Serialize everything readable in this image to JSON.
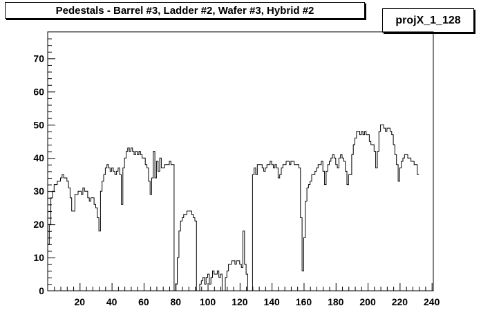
{
  "chart_data": {
    "type": "line",
    "title": "Pedestals - Barrel #3, Ladder #2, Wafer #3, Hybrid #2",
    "stats_label": "projX_1_128",
    "xlabel": "",
    "ylabel": "",
    "xlim": [
      0,
      241
    ],
    "ylim": [
      0,
      78
    ],
    "x_ticks": [
      20,
      40,
      60,
      80,
      100,
      120,
      140,
      160,
      180,
      200,
      220,
      240
    ],
    "y_ticks": [
      0,
      10,
      20,
      30,
      40,
      50,
      60,
      70
    ],
    "grid": false,
    "series": [
      {
        "style": "histogram-step",
        "x_start": 0,
        "bin_width": 1,
        "values": [
          14,
          20,
          28,
          30,
          32,
          32,
          33,
          33,
          34,
          35,
          34,
          34,
          33,
          31,
          28,
          24,
          24,
          29,
          29,
          30,
          30,
          29,
          31,
          30,
          30,
          28,
          27,
          28,
          28,
          26,
          25,
          22,
          18,
          30,
          33,
          35,
          37,
          38,
          37,
          36,
          37,
          36,
          35,
          36,
          37,
          35,
          26,
          37,
          40,
          42,
          43,
          42,
          43,
          42,
          41,
          42,
          41,
          42,
          41,
          40,
          40,
          38,
          37,
          33,
          29,
          34,
          42,
          34,
          39,
          36,
          40,
          37,
          37,
          38,
          38,
          38,
          39,
          38,
          38,
          0,
          2,
          10,
          18,
          21,
          22,
          23,
          23,
          24,
          24,
          24,
          23,
          22,
          21,
          0,
          0,
          2,
          3,
          4,
          2,
          4,
          5,
          2,
          4,
          6,
          5,
          5,
          6,
          4,
          5,
          0,
          0,
          4,
          6,
          8,
          8,
          9,
          9,
          8,
          9,
          9,
          8,
          7,
          18,
          8,
          5,
          0,
          0,
          0,
          35,
          37,
          35,
          38,
          38,
          38,
          37,
          36,
          37,
          38,
          38,
          39,
          38,
          37,
          38,
          37,
          34,
          35,
          37,
          38,
          38,
          39,
          39,
          38,
          39,
          39,
          38,
          38,
          38,
          37,
          22,
          6,
          16,
          27,
          31,
          32,
          33,
          35,
          35,
          36,
          37,
          38,
          38,
          39,
          36,
          32,
          36,
          38,
          39,
          40,
          41,
          40,
          38,
          37,
          40,
          41,
          40,
          39,
          36,
          32,
          35,
          35,
          41,
          44,
          46,
          48,
          48,
          47,
          48,
          47,
          48,
          47,
          47,
          45,
          44,
          44,
          42,
          37,
          42,
          48,
          50,
          50,
          49,
          48,
          49,
          49,
          48,
          47,
          44,
          41,
          38,
          33,
          37,
          39,
          40,
          41,
          41,
          40,
          40,
          39,
          39,
          38,
          38,
          35
        ]
      }
    ]
  }
}
